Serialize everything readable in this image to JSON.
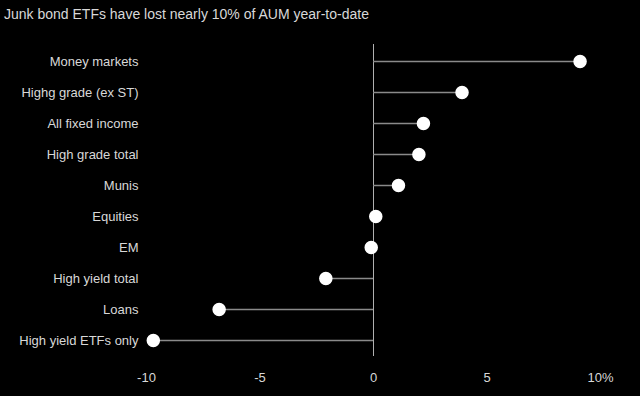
{
  "chart_data": {
    "type": "lollipop",
    "title": "Junk bond ETFs have lost nearly 10% of AUM year-to-date",
    "orientation": "horizontal",
    "categories": [
      "Money markets",
      "Highg grade (ex ST)",
      "All fixed income",
      "High grade total",
      "Munis",
      "Equities",
      "EM",
      "High yield total",
      "Loans",
      "High yield ETFs only"
    ],
    "values": [
      9.1,
      3.9,
      2.2,
      2.0,
      1.1,
      0.1,
      -0.1,
      -2.1,
      -6.8,
      -9.7
    ],
    "color": "#ffffff",
    "marker": "circle",
    "xlim": [
      -10,
      10
    ],
    "xticks": [
      -10,
      -5,
      0,
      5,
      {
        "value": 10,
        "label": "10%"
      }
    ],
    "grid": false
  }
}
